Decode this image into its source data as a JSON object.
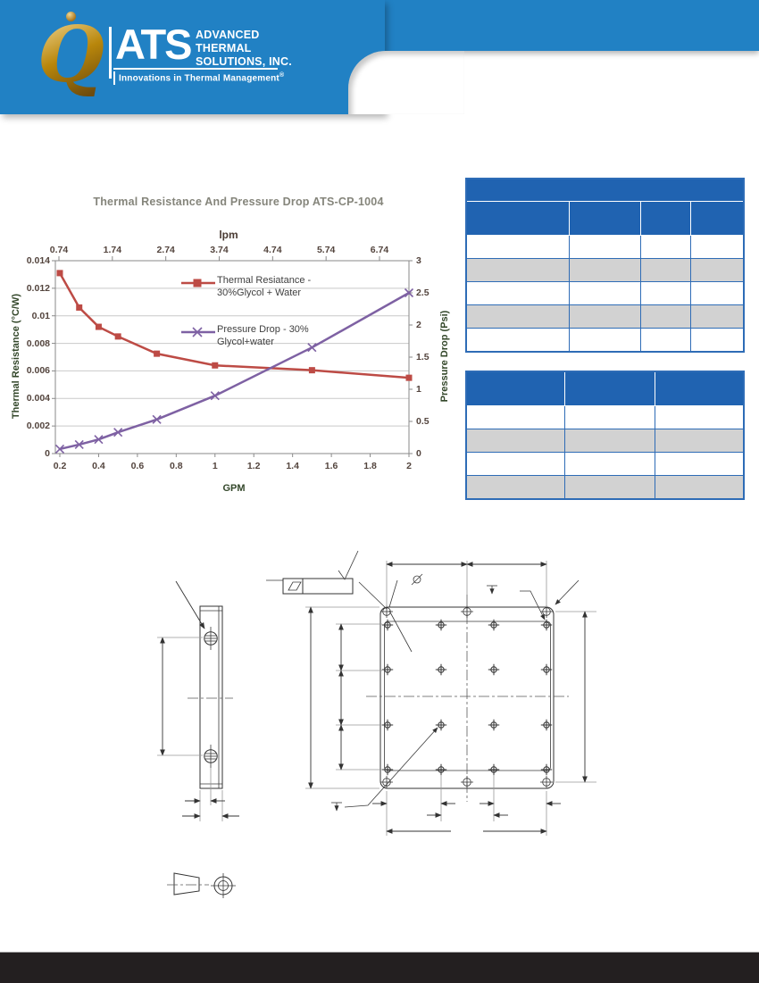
{
  "colors": {
    "header_blue": "#2181c4",
    "table_header_blue": "#2063b1",
    "table_border_blue": "#2e6cb6",
    "row_gray": "#d2d2d2",
    "footer_black": "#231f20",
    "series_red": "#bd4b45",
    "series_purple": "#7e61a3",
    "title_gray": "#85857b",
    "gold": "#b8860b"
  },
  "header": {
    "logo": {
      "q_letter": "Q",
      "wordmark": "ATS",
      "name_line1": "ADVANCED",
      "name_line2": "THERMAL",
      "name_line3": "SOLUTIONS, INC.",
      "tagline": "Innovations in Thermal Management",
      "registered_mark": "®"
    }
  },
  "chart_data": {
    "type": "line",
    "title": "Thermal Resistance And Pressure Drop ATS-CP-1004",
    "top_axis": {
      "label": "lpm",
      "ticks": [
        "0.74",
        "1.74",
        "2.74",
        "3.74",
        "4.74",
        "5.74",
        "6.74"
      ]
    },
    "x_axis": {
      "label": "GPM",
      "min": 0.2,
      "max": 2,
      "ticks": [
        "0.2",
        "0.4",
        "0.6",
        "0.8",
        "1",
        "1.2",
        "1.4",
        "1.6",
        "1.8",
        "2"
      ]
    },
    "y_left": {
      "label": "Thermal Resistance (°C/W)",
      "min": 0,
      "max": 0.014,
      "ticks": [
        "0",
        "0.002",
        "0.004",
        "0.006",
        "0.008",
        "0.01",
        "0.012",
        "0.014"
      ]
    },
    "y_right": {
      "label": "Pressure Drop (Psi)",
      "min": 0,
      "max": 3,
      "ticks": [
        "0",
        "0.5",
        "1",
        "1.5",
        "2",
        "2.5",
        "3"
      ]
    },
    "grid": true,
    "legend_position": "inside-top",
    "series": [
      {
        "name": "Thermal Resiatance - 30%Glycol + Water",
        "axis": "left",
        "color": "#bd4b45",
        "marker": "square",
        "x": [
          0.2,
          0.3,
          0.4,
          0.5,
          0.7,
          1,
          1.5,
          2
        ],
        "y": [
          0.0131,
          0.0106,
          0.0092,
          0.0085,
          0.00725,
          0.0064,
          0.00605,
          0.0055
        ]
      },
      {
        "name": "Pressure Drop - 30% Glycol+water",
        "axis": "right",
        "color": "#7e61a3",
        "marker": "x",
        "x": [
          0.2,
          0.3,
          0.4,
          0.5,
          0.7,
          1,
          1.5,
          2
        ],
        "y": [
          0.07,
          0.14,
          0.22,
          0.33,
          0.53,
          0.9,
          1.65,
          2.5
        ]
      }
    ],
    "legend": [
      {
        "line1": "Thermal Resiatance -",
        "line2": "30%Glycol + Water"
      },
      {
        "line1": "Pressure Drop - 30%",
        "line2": "Glycol+water"
      }
    ]
  },
  "tables": {
    "table1": {
      "header_rows": 2,
      "columns": 4,
      "data_rows": 5,
      "cells_text": ""
    },
    "table2": {
      "header_rows": 1,
      "columns": 3,
      "data_rows": 4,
      "cells_text": ""
    }
  }
}
